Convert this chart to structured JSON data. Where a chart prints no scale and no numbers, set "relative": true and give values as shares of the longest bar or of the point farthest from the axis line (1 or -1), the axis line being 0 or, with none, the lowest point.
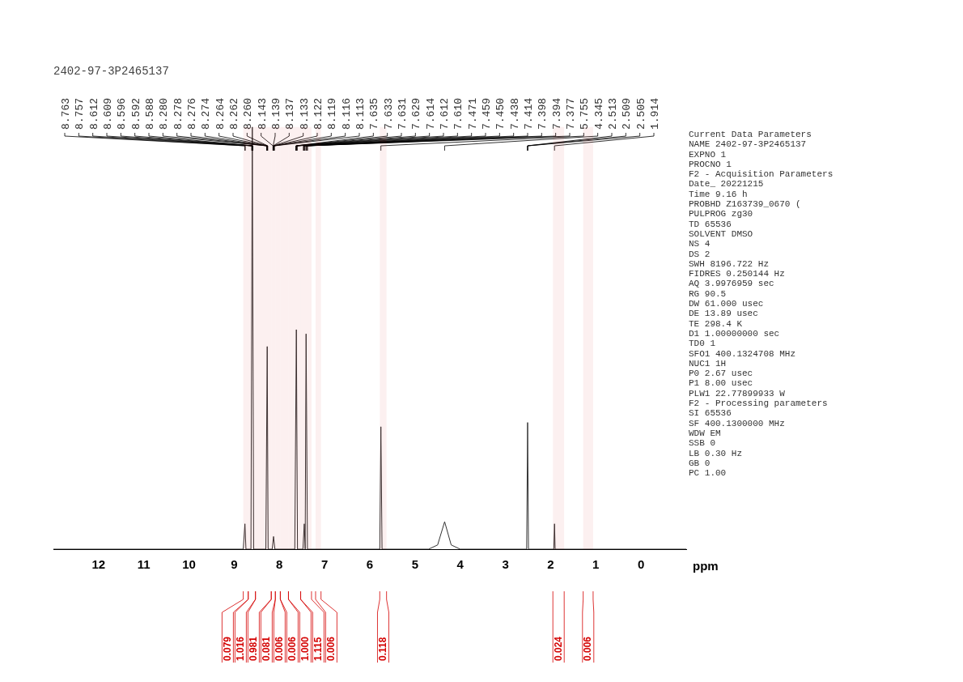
{
  "chart_data": {
    "type": "line",
    "title": "2402-97-3P2465137",
    "xlabel": "ppm",
    "relative": true,
    "xlim": [
      13,
      -1
    ],
    "xticks": [
      12,
      11,
      10,
      9,
      8,
      7,
      6,
      5,
      4,
      3,
      2,
      1,
      0
    ],
    "grid": false,
    "legend": false,
    "marker": "none",
    "series": [
      {
        "color": "#333333",
        "x": [
          13,
          8.8,
          8.763,
          8.74,
          8.63,
          8.6,
          8.57,
          8.3,
          8.27,
          8.25,
          8.16,
          8.13,
          8.1,
          7.66,
          7.625,
          7.6,
          7.48,
          7.45,
          7.43,
          7.41,
          7.38,
          5.78,
          5.755,
          5.73,
          4.7,
          4.5,
          4.345,
          4.2,
          4.0,
          2.53,
          2.509,
          2.49,
          1.93,
          1.914,
          1.9,
          -1
        ],
        "values": [
          0,
          0,
          0.06,
          0,
          0,
          1,
          0,
          0,
          0.48,
          0,
          0,
          0.03,
          0,
          0,
          0.52,
          0,
          0,
          0.06,
          0,
          0.51,
          0,
          0,
          0.29,
          0,
          0,
          0.01,
          0.065,
          0.01,
          0,
          0,
          0.3,
          0,
          0,
          0.06,
          0,
          0
        ]
      }
    ],
    "annotations": [
      {
        "text": "8.763",
        "x": 8.763
      },
      {
        "text": "8.757",
        "x": 8.757
      },
      {
        "text": "8.612",
        "x": 8.612
      },
      {
        "text": "8.609",
        "x": 8.609
      },
      {
        "text": "8.596",
        "x": 8.596
      },
      {
        "text": "8.592",
        "x": 8.592
      },
      {
        "text": "8.588",
        "x": 8.588
      },
      {
        "text": "8.280",
        "x": 8.28
      },
      {
        "text": "8.278",
        "x": 8.278
      },
      {
        "text": "8.276",
        "x": 8.276
      },
      {
        "text": "8.274",
        "x": 8.274
      },
      {
        "text": "8.264",
        "x": 8.264
      },
      {
        "text": "8.262",
        "x": 8.262
      },
      {
        "text": "8.260",
        "x": 8.26
      },
      {
        "text": "8.143",
        "x": 8.143
      },
      {
        "text": "8.139",
        "x": 8.139
      },
      {
        "text": "8.137",
        "x": 8.137
      },
      {
        "text": "8.133",
        "x": 8.133
      },
      {
        "text": "8.122",
        "x": 8.122
      },
      {
        "text": "8.119",
        "x": 8.119
      },
      {
        "text": "8.116",
        "x": 8.116
      },
      {
        "text": "8.113",
        "x": 8.113
      },
      {
        "text": "7.635",
        "x": 7.635
      },
      {
        "text": "7.633",
        "x": 7.633
      },
      {
        "text": "7.631",
        "x": 7.631
      },
      {
        "text": "7.629",
        "x": 7.629
      },
      {
        "text": "7.614",
        "x": 7.614
      },
      {
        "text": "7.612",
        "x": 7.612
      },
      {
        "text": "7.610",
        "x": 7.61
      },
      {
        "text": "7.471",
        "x": 7.471
      },
      {
        "text": "7.459",
        "x": 7.459
      },
      {
        "text": "7.450",
        "x": 7.45
      },
      {
        "text": "7.438",
        "x": 7.438
      },
      {
        "text": "7.414",
        "x": 7.414
      },
      {
        "text": "7.398",
        "x": 7.398
      },
      {
        "text": "7.394",
        "x": 7.394
      },
      {
        "text": "7.377",
        "x": 7.377
      },
      {
        "text": "5.755",
        "x": 5.755
      },
      {
        "text": "4.345",
        "x": 4.345
      },
      {
        "text": "2.513",
        "x": 2.513
      },
      {
        "text": "2.509",
        "x": 2.509
      },
      {
        "text": "2.505",
        "x": 2.505
      },
      {
        "text": "1.914",
        "x": 1.914
      },
      "Current Data Parameters",
      "NAME 2402-97-3P2465137",
      "EXPNO 1",
      "PROCNO 1",
      "F2 - Acquisition Parameters",
      "Date_ 20221215",
      "Time 9.16 h",
      "PROBHD Z163739_0670 (",
      "PULPROG zg30",
      "TD 65536",
      "SOLVENT DMSO",
      "NS 4",
      "DS 2",
      "SWH 8196.722 Hz",
      "FIDRES 0.250144 Hz",
      "AQ 3.9976959 sec",
      "RG 90.5",
      "DW 61.000 usec",
      "DE 13.89 usec",
      "TE 298.4 K",
      "D1 1.00000000 sec",
      "TD0 1",
      "SFO1 400.1324708 MHz",
      "NUC1 1H",
      "P0 2.67 usec",
      "P1 8.00 usec",
      "PLW1 22.77899933 W",
      "F2 - Processing parameters",
      "SI 65536",
      "SF 400.1300000 MHz",
      "WDW EM",
      "SSB 0",
      "LB 0.30 Hz",
      "GB 0",
      "PC 1.00"
    ],
    "bands": [
      {
        "axis": "x",
        "from": 8.8,
        "to": 8.69,
        "label": "0.079",
        "color": "#d40000"
      },
      {
        "axis": "x",
        "from": 8.69,
        "to": 8.53,
        "label": "1.016",
        "color": "#d40000"
      },
      {
        "axis": "x",
        "from": 8.53,
        "to": 8.18,
        "label": "0.981",
        "color": "#d40000"
      },
      {
        "axis": "x",
        "from": 8.18,
        "to": 8.09,
        "label": "0.081",
        "color": "#d40000"
      },
      {
        "axis": "x",
        "from": 8.09,
        "to": 7.98,
        "label": "0.006",
        "color": "#d40000"
      },
      {
        "axis": "x",
        "from": 7.98,
        "to": 7.8,
        "label": "0.006",
        "color": "#d40000"
      },
      {
        "axis": "x",
        "from": 7.8,
        "to": 7.53,
        "label": "1.000",
        "color": "#d40000"
      },
      {
        "axis": "x",
        "from": 7.53,
        "to": 7.29,
        "label": "1.115",
        "color": "#d40000"
      },
      {
        "axis": "x",
        "from": 7.2,
        "to": 7.08,
        "label": "0.006",
        "color": "#d40000"
      },
      {
        "axis": "x",
        "from": 5.78,
        "to": 5.63,
        "label": "0.118",
        "color": "#d40000"
      },
      {
        "axis": "x",
        "from": 1.95,
        "to": 1.7,
        "label": "0.024",
        "color": "#d40000"
      },
      {
        "axis": "x",
        "from": 1.28,
        "to": 1.06,
        "label": "0.006",
        "color": "#d40000"
      }
    ]
  }
}
